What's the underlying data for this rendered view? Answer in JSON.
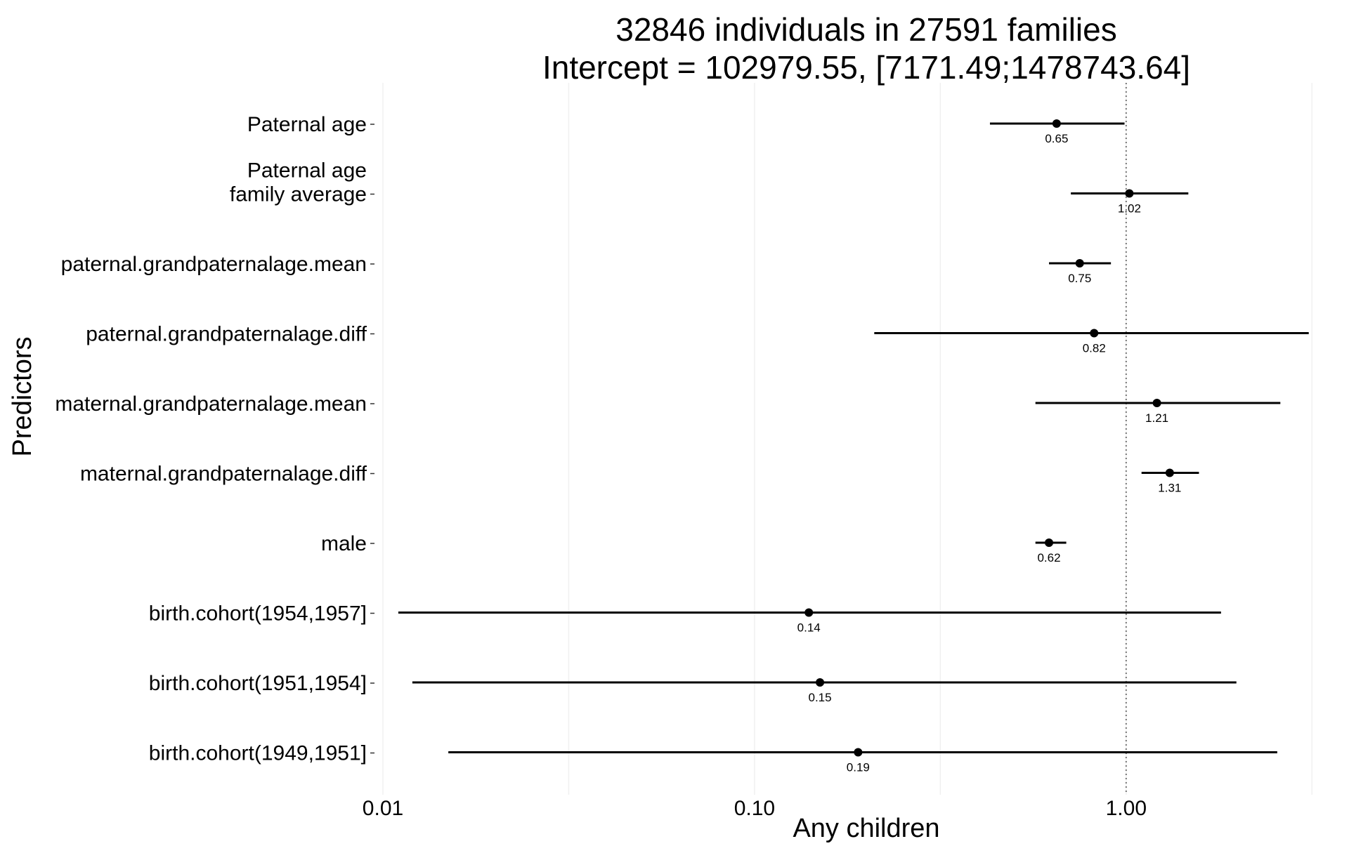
{
  "chart_data": {
    "type": "forest",
    "title_lines": [
      "32846 individuals in 27591 families",
      "Intercept = 102979.55, [7171.49;1478743.64]"
    ],
    "xlabel": "Any children",
    "ylabel": "Predictors",
    "x_scale": "log10",
    "xlim": [
      0.01,
      3.2
    ],
    "x_ticks": [
      {
        "value": 0.01,
        "label": "0.01"
      },
      {
        "value": 0.1,
        "label": "0.10"
      },
      {
        "value": 1.0,
        "label": "1.00"
      }
    ],
    "reference_line": 1.0,
    "grid": "vertical, faint",
    "predictors": [
      {
        "label_lines": [
          "Paternal age"
        ],
        "estimate": 0.65,
        "estimate_label": "0.65",
        "ci": [
          0.43,
          0.99
        ]
      },
      {
        "label_lines": [
          "Paternal age",
          "family average"
        ],
        "estimate": 1.02,
        "estimate_label": "1.02",
        "ci": [
          0.71,
          1.47
        ]
      },
      {
        "label_lines": [
          "paternal.grandpaternalage.mean"
        ],
        "estimate": 0.75,
        "estimate_label": "0.75",
        "ci": [
          0.62,
          0.91
        ]
      },
      {
        "label_lines": [
          "paternal.grandpaternalage.diff"
        ],
        "estimate": 0.82,
        "estimate_label": "0.82",
        "ci": [
          0.21,
          3.1
        ]
      },
      {
        "label_lines": [
          "maternal.grandpaternalage.mean"
        ],
        "estimate": 1.21,
        "estimate_label": "1.21",
        "ci": [
          0.57,
          2.6
        ]
      },
      {
        "label_lines": [
          "maternal.grandpaternalage.diff"
        ],
        "estimate": 1.31,
        "estimate_label": "1.31",
        "ci": [
          1.1,
          1.57
        ]
      },
      {
        "label_lines": [
          "male"
        ],
        "estimate": 0.62,
        "estimate_label": "0.62",
        "ci": [
          0.57,
          0.69
        ]
      },
      {
        "label_lines": [
          "birth.cohort(1954,1957]"
        ],
        "estimate": 0.14,
        "estimate_label": "0.14",
        "ci": [
          0.011,
          1.8
        ]
      },
      {
        "label_lines": [
          "birth.cohort(1951,1954]"
        ],
        "estimate": 0.15,
        "estimate_label": "0.15",
        "ci": [
          0.012,
          1.98
        ]
      },
      {
        "label_lines": [
          "birth.cohort(1949,1951]"
        ],
        "estimate": 0.19,
        "estimate_label": "0.19",
        "ci": [
          0.015,
          2.55
        ]
      }
    ]
  }
}
